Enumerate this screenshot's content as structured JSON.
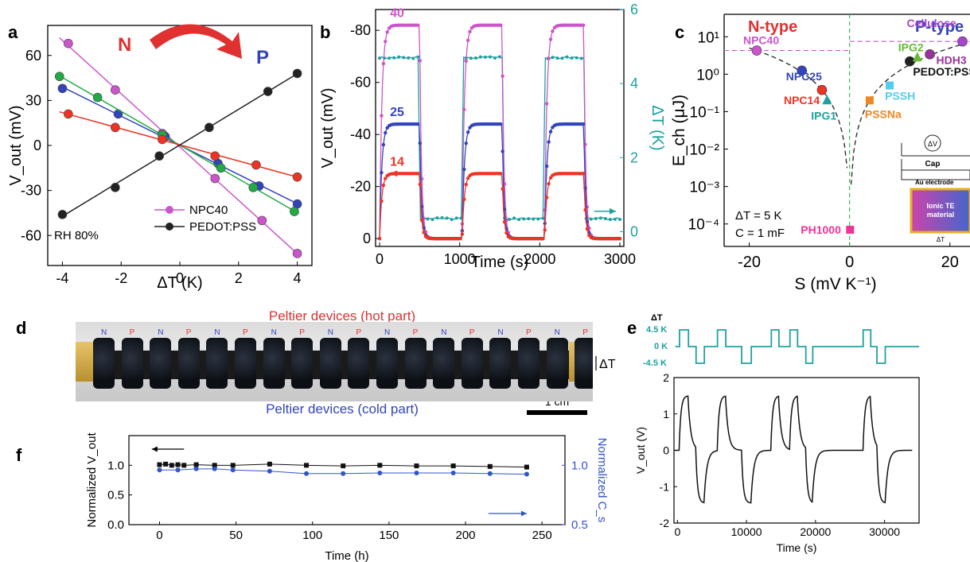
{
  "panels": {
    "a": "a",
    "b": "b",
    "c": "c",
    "d": "d",
    "e": "e",
    "f": "f"
  },
  "chart_data": [
    {
      "id": "a",
      "type": "scatter",
      "xlabel": "ΔT (K)",
      "ylabel": "V_out (mV)",
      "xlim": [
        -4.5,
        4.5
      ],
      "ylim": [
        -80,
        80
      ],
      "xticks": [
        "-4",
        "-2",
        "0",
        "2",
        "4"
      ],
      "yticks": [
        "60",
        "30",
        "0",
        "-30",
        "-60"
      ],
      "annotations": {
        "n_label": "N",
        "p_label": "P",
        "rh": "RH 80%"
      },
      "legend": [
        "NPC40",
        "PEDOT:PSS"
      ],
      "series": [
        {
          "name": "NPC40",
          "color": "#cc55cc",
          "x": [
            -3.8,
            -2.2,
            -0.6,
            1.2,
            2.8,
            4.0
          ],
          "y": [
            68,
            37,
            8,
            -22,
            -50,
            -72
          ]
        },
        {
          "color": "#3344bb",
          "x": [
            -4.0,
            -2.1,
            -0.5,
            1.3,
            2.7,
            4.0
          ],
          "y": [
            38,
            21,
            6,
            -12,
            -27,
            -39
          ]
        },
        {
          "color": "#22aa44",
          "x": [
            -4.1,
            -2.8,
            -0.6,
            1.4,
            2.5,
            3.9
          ],
          "y": [
            46,
            32,
            7,
            -15,
            -28,
            -44
          ]
        },
        {
          "color": "#ee3322",
          "x": [
            -3.8,
            -2.2,
            -0.6,
            1.2,
            2.6,
            4.0
          ],
          "y": [
            21,
            12,
            4,
            -7,
            -13,
            -21
          ]
        },
        {
          "name": "PEDOT:PSS",
          "color": "#222222",
          "x": [
            -4.0,
            -2.2,
            -0.7,
            1.0,
            3.0,
            4.0
          ],
          "y": [
            -46,
            -28,
            -7,
            12,
            36,
            48
          ]
        }
      ]
    },
    {
      "id": "b",
      "type": "line",
      "xlabel": "Time (s)",
      "ylabel": "V_out (mV)",
      "y2label": "ΔT (K)",
      "xlim": [
        -50,
        3050
      ],
      "ylim": [
        -88,
        3
      ],
      "y2lim": [
        -0.4,
        6
      ],
      "xticks": [
        "0",
        "1000",
        "2000",
        "3000"
      ],
      "yticks": [
        "-80",
        "-60",
        "-40",
        "-20",
        "0"
      ],
      "y2ticks": [
        "0",
        "2",
        "4",
        "6"
      ],
      "series_labels": [
        "40",
        "25",
        "14"
      ],
      "label_colors": [
        "#cc55cc",
        "#3344bb",
        "#ee3322"
      ],
      "plateaus": [
        -82,
        -44,
        -25
      ],
      "on_windows": [
        [
          0,
          500
        ],
        [
          1030,
          1530
        ],
        [
          2060,
          2550
        ]
      ],
      "dt_high": 4.7,
      "dt_low": 0.35
    },
    {
      "id": "c",
      "type": "scatter",
      "xlabel": "S (mV K⁻¹)",
      "ylabel": "E_ch (μJ)",
      "scale": "log-y",
      "xlim": [
        -25,
        24
      ],
      "ylim_exp": [
        -4.6,
        1.6
      ],
      "xticks": [
        "-20",
        "0",
        "20"
      ],
      "yticks": [
        "10¹",
        "10⁰",
        "10⁻¹",
        "10⁻²",
        "10⁻³",
        "10⁻⁴"
      ],
      "titles": {
        "n": "N-type",
        "p": "P-type"
      },
      "conditions": [
        "ΔT = 5 K",
        "C = 1 mF"
      ],
      "points": [
        {
          "label": "NPC40",
          "x": -18.5,
          "y": 4.3,
          "color": "#cc55cc",
          "marker": "circle"
        },
        {
          "label": "NPC25",
          "x": -9.5,
          "y": 1.25,
          "color": "#3344bb",
          "marker": "circle"
        },
        {
          "label": "NPC14",
          "x": -5.5,
          "y": 0.38,
          "color": "#ee3322",
          "marker": "circle"
        },
        {
          "label": "IPG1",
          "x": -4.5,
          "y": 0.2,
          "color": "#20a0a0",
          "marker": "triangle"
        },
        {
          "label": "PH1000",
          "x": 0.1,
          "y": 7e-05,
          "color": "#ee3399",
          "marker": "square"
        },
        {
          "label": "PSSNa",
          "x": 4,
          "y": 0.2,
          "color": "#ee8822",
          "marker": "square"
        },
        {
          "label": "PSSH",
          "x": 8,
          "y": 0.5,
          "color": "#55ccee",
          "marker": "square"
        },
        {
          "label": "PEDOT:PSS",
          "x": 12,
          "y": 2.2,
          "color": "#222222",
          "marker": "circle"
        },
        {
          "label": "IPG2",
          "x": 13.5,
          "y": 2.8,
          "color": "#66bb33",
          "marker": "triangle"
        },
        {
          "label": "HDH3",
          "x": 16,
          "y": 3.4,
          "color": "#993399",
          "marker": "circle"
        },
        {
          "label": "Cellulose",
          "x": 22.5,
          "y": 7.5,
          "color": "#aa44cc",
          "marker": "circle"
        }
      ],
      "inset": {
        "dv": "ΔV",
        "cap": "Cap",
        "electrode": "Au electrode",
        "material": "Ionic TE material",
        "dt": "ΔT"
      }
    },
    {
      "id": "e",
      "type": "line",
      "xlabel": "Time (s)",
      "ylabel": "V_out (V)",
      "xlim": [
        -500,
        35000
      ],
      "ylim": [
        -2,
        2
      ],
      "xticks": [
        "0",
        "10000",
        "20000",
        "30000"
      ],
      "yticks": [
        "2",
        "1",
        "0",
        "-1",
        "-2"
      ],
      "dt_label": "ΔT",
      "dt_levels": [
        "4.5 K",
        "0 K",
        "-4.5 K"
      ]
    },
    {
      "id": "f",
      "type": "line",
      "xlabel": "Time (h)",
      "ylabel": "Normalized V_out",
      "y2label": "Normalized C_s",
      "xlim": [
        -20,
        265
      ],
      "ylim": [
        0,
        1.5
      ],
      "y2lim": [
        0.5,
        1.25
      ],
      "xticks": [
        "0",
        "50",
        "100",
        "150",
        "200",
        "250"
      ],
      "yticks": [
        "0.0",
        "0.5",
        "1.0"
      ],
      "y2ticks": [
        "0.5",
        "1.0"
      ],
      "series": [
        {
          "name": "Normalized V_out",
          "color": "#111111",
          "x": [
            0,
            4,
            8,
            12,
            16,
            24,
            36,
            48,
            72,
            96,
            120,
            144,
            168,
            192,
            216,
            240
          ],
          "y": [
            1.01,
            1.02,
            1.0,
            1.01,
            1.0,
            1.01,
            1.0,
            1.0,
            1.02,
            1.0,
            0.99,
            1.0,
            0.99,
            0.99,
            0.98,
            0.97
          ]
        },
        {
          "name": "Normalized C_s",
          "color": "#3355cc",
          "x": [
            0,
            12,
            24,
            36,
            48,
            72,
            96,
            120,
            144,
            168,
            192,
            216,
            240
          ],
          "y": [
            0.96,
            0.96,
            0.97,
            0.97,
            0.96,
            0.95,
            0.93,
            0.93,
            0.935,
            0.935,
            0.935,
            0.93,
            0.925
          ]
        }
      ]
    }
  ],
  "photo": {
    "hot_label": "Peltier devices (hot part)",
    "cold_label": "Peltier devices (cold part)",
    "scale_bar": "1 cm",
    "dt_label": "ΔT",
    "np_labels": [
      "N",
      "P",
      "N",
      "P",
      "N",
      "P",
      "N",
      "P",
      "N",
      "P",
      "N",
      "P",
      "N",
      "P",
      "N",
      "P",
      "N",
      "P"
    ]
  }
}
